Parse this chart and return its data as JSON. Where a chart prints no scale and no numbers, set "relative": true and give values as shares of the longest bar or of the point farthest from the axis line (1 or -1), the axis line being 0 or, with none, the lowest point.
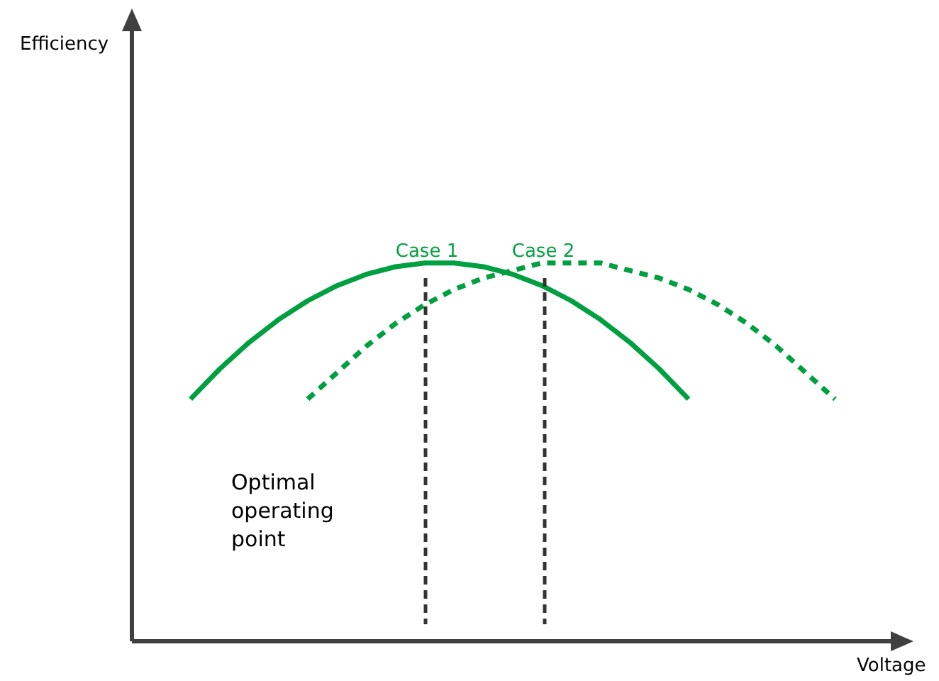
{
  "chart_data": {
    "type": "line",
    "relative": true,
    "xlabel": "Voltage",
    "categories": [
      null,
      null,
      null,
      null,
      null,
      null,
      null,
      null,
      null,
      null,
      null,
      null,
      null,
      null,
      null,
      null,
      null,
      null,
      null,
      null,
      null,
      null,
      null
    ],
    "series": [
      {
        "color": "#00a040",
        "line_style": "solid",
        "values": [
          0.64,
          0.72,
          0.79,
          0.85,
          0.9,
          0.94,
          0.97,
          0.99,
          1,
          1,
          0.99,
          0.97,
          0.94,
          0.9,
          0.85,
          0.79,
          0.72,
          0.64,
          null,
          null,
          null,
          null,
          null
        ]
      },
      {
        "color": "#00a040",
        "line_style": "dashed",
        "values": [
          null,
          null,
          null,
          null,
          0.64,
          0.71,
          0.78,
          0.84,
          0.89,
          0.93,
          0.96,
          0.98,
          1,
          1,
          1,
          0.98,
          0.96,
          0.93,
          0.89,
          0.84,
          0.78,
          0.71,
          0.64
        ]
      }
    ],
    "annotations": [
      "Efficiency",
      "Case 1",
      "Case 2",
      "Optimal operating point"
    ],
    "marker": "none"
  }
}
